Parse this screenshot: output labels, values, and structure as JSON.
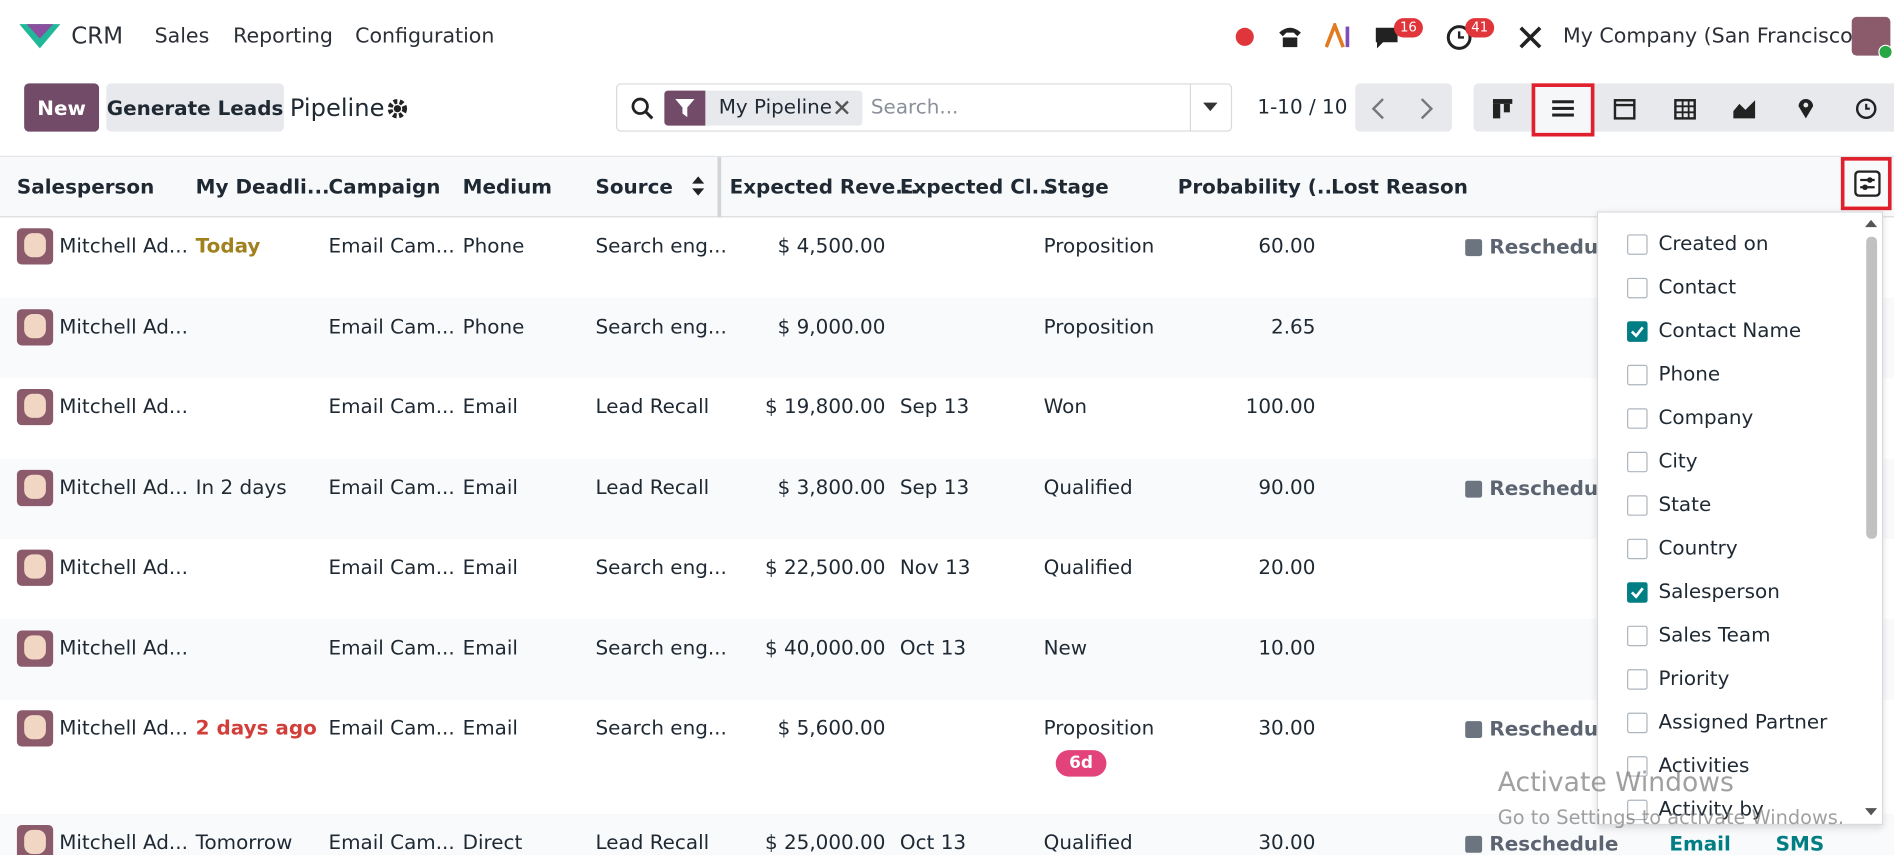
{
  "navbar": {
    "app": "CRM",
    "menus": [
      "Sales",
      "Reporting",
      "Configuration"
    ],
    "messages_badge": "16",
    "activities_badge": "41",
    "company": "My Company (San Francisco)"
  },
  "control_panel": {
    "new_button": "New",
    "generate_button": "Generate Leads",
    "title": "Pipeline",
    "facet": "My Pipeline",
    "search_placeholder": "Search...",
    "pager": "1-10 / 10"
  },
  "table": {
    "headers": [
      "Salesperson",
      "My Deadli...",
      "Campaign",
      "Medium",
      "Source",
      "Expected Reve...",
      "Expected Cl...",
      "Stage",
      "Probability (...",
      "Lost Reason"
    ],
    "rows": [
      {
        "salesperson": "Mitchell Ad...",
        "deadline": "Today",
        "deadline_color": "#a0811e",
        "campaign": "Email Cam...",
        "medium": "Phone",
        "source": "Search eng...",
        "revenue": "$ 4,500.00",
        "stage": "Proposition",
        "probability": "60.00",
        "activity": "Reschedule"
      },
      {
        "salesperson": "Mitchell Ad...",
        "campaign": "Email Cam...",
        "medium": "Phone",
        "source": "Search eng...",
        "revenue": "$ 9,000.00",
        "stage": "Proposition",
        "probability": "2.65"
      },
      {
        "salesperson": "Mitchell Ad...",
        "campaign": "Email Cam...",
        "medium": "Email",
        "source": "Lead Recall",
        "revenue": "$ 19,800.00",
        "closing": "Sep 13",
        "stage": "Won",
        "probability": "100.00"
      },
      {
        "salesperson": "Mitchell Ad...",
        "deadline": "In 2 days",
        "deadline_color": "#1f2933",
        "campaign": "Email Cam...",
        "medium": "Email",
        "source": "Lead Recall",
        "revenue": "$ 3,800.00",
        "closing": "Sep 13",
        "stage": "Qualified",
        "probability": "90.00",
        "activity": "Reschedule"
      },
      {
        "salesperson": "Mitchell Ad...",
        "campaign": "Email Cam...",
        "medium": "Email",
        "source": "Search eng...",
        "revenue": "$ 22,500.00",
        "closing": "Nov 13",
        "stage": "Qualified",
        "probability": "20.00"
      },
      {
        "salesperson": "Mitchell Ad...",
        "campaign": "Email Cam...",
        "medium": "Email",
        "source": "Search eng...",
        "revenue": "$ 40,000.00",
        "closing": "Oct 13",
        "stage": "New",
        "probability": "10.00"
      },
      {
        "salesperson": "Mitchell Ad...",
        "deadline": "2 days ago",
        "deadline_color": "#d23f3a",
        "campaign": "Email Cam...",
        "medium": "Email",
        "source": "Search eng...",
        "revenue": "$ 5,600.00",
        "stage": "Proposition",
        "badge": "6d",
        "probability": "30.00",
        "activity": "Reschedule"
      },
      {
        "salesperson": "Mitchell Ad...",
        "deadline": "Tomorrow",
        "deadline_color": "#1f2933",
        "campaign": "Email Cam...",
        "medium": "Direct",
        "source": "Lead Recall",
        "revenue": "$ 25,000.00",
        "closing": "Oct 13",
        "stage": "Qualified",
        "probability": "30.00",
        "activity": "Reschedule",
        "actions": [
          "Email",
          "SMS"
        ]
      }
    ]
  },
  "column_options": [
    {
      "label": "Created on",
      "checked": false
    },
    {
      "label": "Contact",
      "checked": false
    },
    {
      "label": "Contact Name",
      "checked": true
    },
    {
      "label": "Phone",
      "checked": false
    },
    {
      "label": "Company",
      "checked": false
    },
    {
      "label": "City",
      "checked": false
    },
    {
      "label": "State",
      "checked": false
    },
    {
      "label": "Country",
      "checked": false
    },
    {
      "label": "Salesperson",
      "checked": true
    },
    {
      "label": "Sales Team",
      "checked": false
    },
    {
      "label": "Priority",
      "checked": false
    },
    {
      "label": "Assigned Partner",
      "checked": false
    },
    {
      "label": "Activities",
      "checked": false
    },
    {
      "label": "Activity by",
      "checked": false
    }
  ],
  "watermark": {
    "title": "Activate Windows",
    "subtitle": "Go to Settings to activate Windows."
  }
}
